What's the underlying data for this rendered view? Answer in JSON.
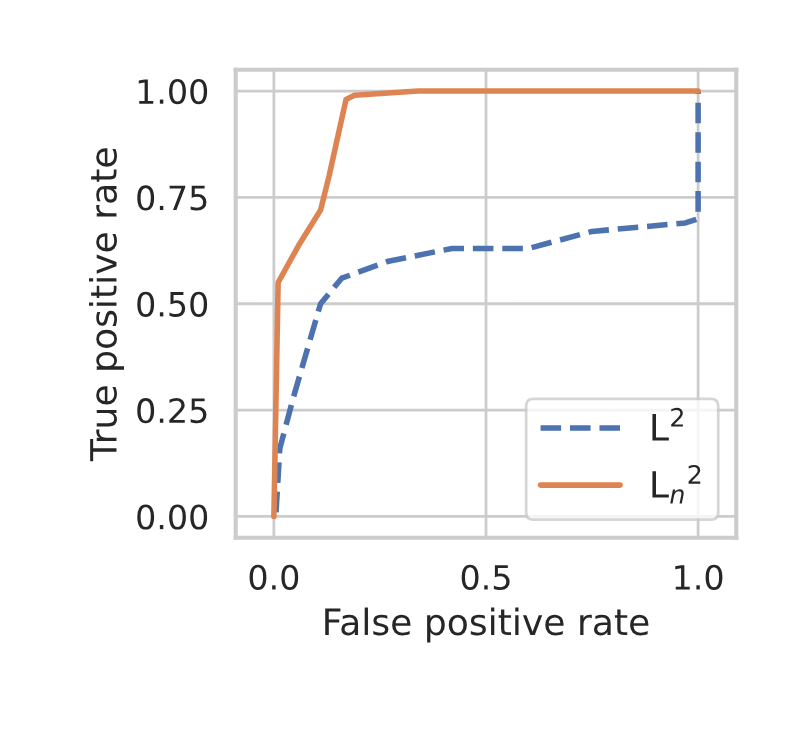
{
  "chart_data": {
    "type": "line",
    "xlabel": "False positive rate",
    "ylabel": "True positive rate",
    "xlim": [
      -0.09,
      1.09
    ],
    "ylim": [
      -0.05,
      1.05
    ],
    "xticks": [
      {
        "value": 0,
        "label": "0.0"
      },
      0.5,
      {
        "value": 1,
        "label": "1.0"
      }
    ],
    "yticks": [
      {
        "value": 0,
        "label": "0.00"
      },
      0.25,
      {
        "value": 0.5,
        "label": "0.50"
      },
      0.75,
      {
        "value": 1,
        "label": "1.00"
      }
    ],
    "grid": true,
    "legend": "bottom right",
    "series": [
      {
        "name": "L$^{2}$",
        "color": "#4c72b0",
        "line_style": "dashed",
        "x": [
          0.005,
          0.014,
          0.046,
          0.11,
          0.16,
          0.27,
          0.42,
          0.6,
          0.75,
          0.97,
          1.0,
          1.0
        ],
        "values": [
          0.01,
          0.16,
          0.28,
          0.5,
          0.56,
          0.6,
          0.63,
          0.63,
          0.67,
          0.69,
          0.7,
          1.0
        ]
      },
      {
        "name": "L$_{n}$$^{2}$",
        "color": "#dd8452",
        "line_style": "solid",
        "x": [
          0.0,
          0.01,
          0.06,
          0.11,
          0.13,
          0.17,
          0.19,
          0.34,
          1.0
        ],
        "values": [
          0.0,
          0.55,
          0.64,
          0.72,
          0.8,
          0.98,
          0.99,
          1.0,
          1.0
        ]
      }
    ]
  }
}
